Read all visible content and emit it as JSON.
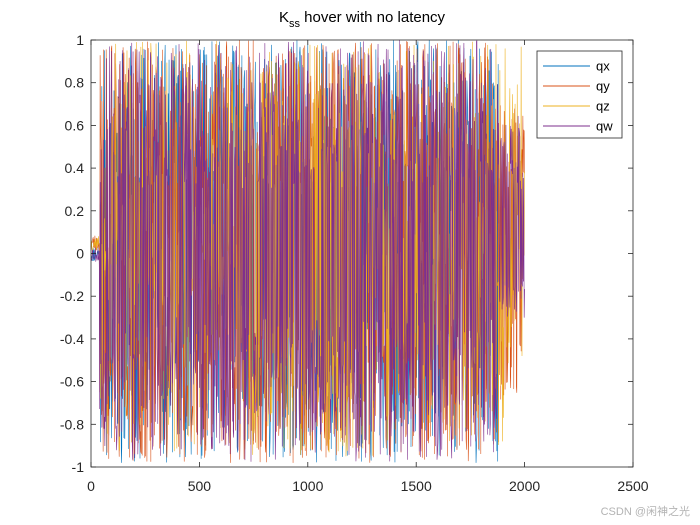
{
  "chart_data": {
    "type": "line",
    "title": {
      "main": "K",
      "subscript": "ss",
      "rest": " hover with no latency"
    },
    "xlabel": "",
    "ylabel": "",
    "xlim": [
      0,
      2500
    ],
    "ylim": [
      -1,
      1
    ],
    "xticks": [
      0,
      500,
      1000,
      1500,
      2000,
      2500
    ],
    "yticks": [
      -1,
      -0.8,
      -0.6,
      -0.4,
      -0.2,
      0,
      0.2,
      0.4,
      0.6,
      0.8,
      1
    ],
    "xtick_labels": [
      "0",
      "500",
      "1000",
      "1500",
      "2000",
      "2500"
    ],
    "ytick_labels": [
      "-1",
      "-0.8",
      "-0.6",
      "-0.4",
      "-0.2",
      "0",
      "0.2",
      "0.4",
      "0.6",
      "0.8",
      "1"
    ],
    "legend_position": "top-right",
    "sample_count": 2000,
    "series": [
      {
        "name": "qx",
        "color": "#0072BD",
        "start": 0.0,
        "upper_range": [
          0.2,
          1.0
        ],
        "lower_range": [
          -0.98,
          -0.2
        ],
        "note": "oscillates between about -0.98 and 1.0 from x=40 to x=1880, then stops"
      },
      {
        "name": "qy",
        "color": "#D95319",
        "start": 0.05,
        "upper_range": [
          0.3,
          1.0
        ],
        "lower_range": [
          -0.98,
          -0.3
        ],
        "end_band": [
          -0.7,
          0.7
        ],
        "note": "full-range oscillation to x=2000, bounded near +/-0.7 after x=1880"
      },
      {
        "name": "qz",
        "color": "#EDB120",
        "start": 0.05,
        "upper_range": [
          0.3,
          1.0
        ],
        "lower_range": [
          -0.95,
          -0.3
        ],
        "dense_region": [
          700,
          1250
        ],
        "note": "dominant oscillation between x=700 and x=1250"
      },
      {
        "name": "qw",
        "color": "#7E2F8E",
        "start": 0.0,
        "upper_range": [
          0.3,
          1.0
        ],
        "lower_range": [
          -0.98,
          -0.3
        ],
        "end_band": [
          -0.3,
          0.65
        ],
        "note": "dense full-range oscillation, narrowing to about -0.3..0.65 near x=2000"
      }
    ]
  },
  "watermark": "CSDN @闲神之光"
}
